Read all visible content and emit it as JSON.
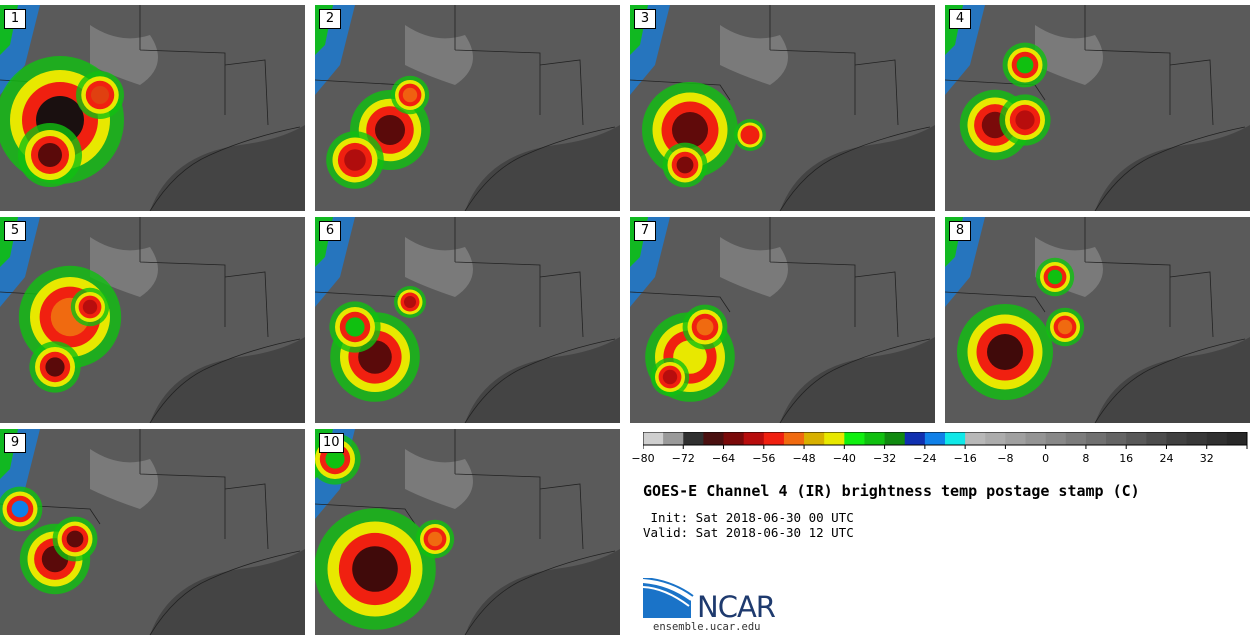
{
  "panels": [
    {
      "label": "1"
    },
    {
      "label": "2"
    },
    {
      "label": "3"
    },
    {
      "label": "4"
    },
    {
      "label": "5"
    },
    {
      "label": "6"
    },
    {
      "label": "7"
    },
    {
      "label": "8"
    },
    {
      "label": "9"
    },
    {
      "label": "10"
    }
  ],
  "colorbar": {
    "ticks": [
      "−80",
      "−72",
      "−64",
      "−56",
      "−48",
      "−40",
      "−32",
      "−24",
      "−16",
      "−8",
      "0",
      "8",
      "16",
      "24",
      "32"
    ],
    "colors": [
      "#cfcfcf",
      "#9a9a9a",
      "#303030",
      "#4a1010",
      "#7a0a0a",
      "#b80d0d",
      "#f02010",
      "#f06a10",
      "#d8b000",
      "#e8e800",
      "#10f010",
      "#10c010",
      "#108a10",
      "#1030b0",
      "#1080e8",
      "#10e8e8",
      "#b8b8b8",
      "#acacac",
      "#a0a0a0",
      "#949494",
      "#888888",
      "#7c7c7c",
      "#707070",
      "#646464",
      "#585858",
      "#4c4c4c",
      "#404040",
      "#383838",
      "#303030",
      "#282828"
    ]
  },
  "title": "GOES-E Channel 4 (IR) brightness temp postage stamp (C)",
  "init_label": " Init: Sat 2018-06-30 00 UTC",
  "valid_label": "Valid: Sat 2018-06-30 12 UTC",
  "logo": {
    "name": "NCAR",
    "url": "ensemble.ucar.edu"
  }
}
